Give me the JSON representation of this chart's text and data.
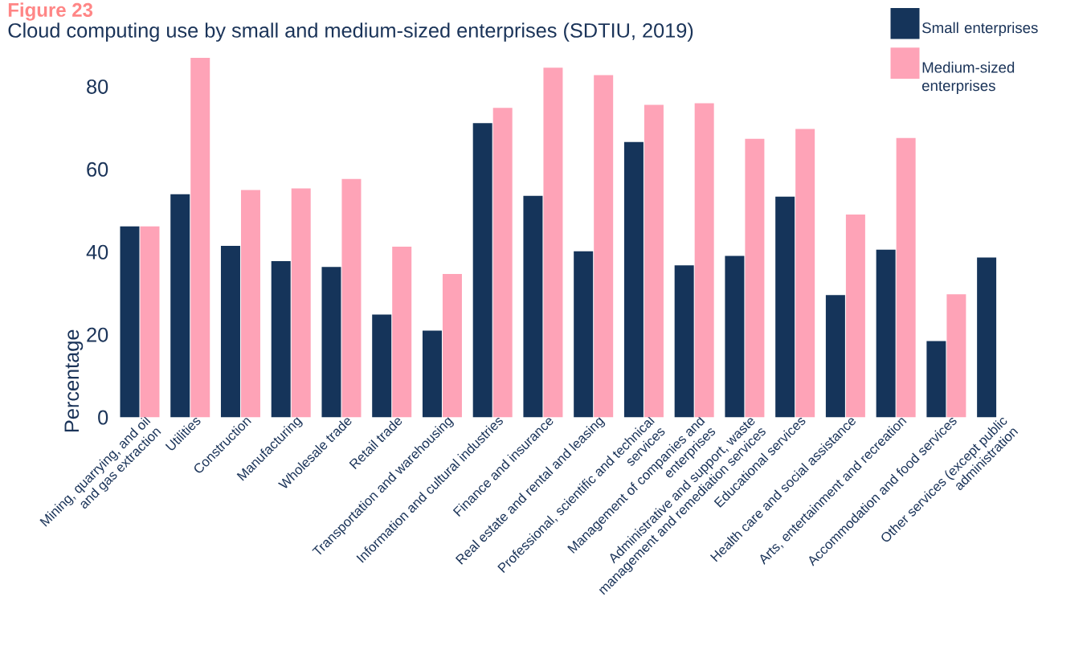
{
  "chart_data": {
    "type": "bar",
    "title": "Figure 23",
    "subtitle": "Cloud computing use by small and medium-sized enterprises (SDTIU, 2019)",
    "ylabel": "Percentage",
    "categories": [
      "Mining, quarrying, and oil and gas extraction",
      "Utilities",
      "Construction",
      "Manufacturing",
      "Wholesale trade",
      "Retail trade",
      "Transportation and warehousing",
      "Information and cultural industries",
      "Finance and insurance",
      "Real estate and rental and leasing",
      "Professional, scientific and technical services",
      "Management of companies and enterprises",
      "Administrative and support, waste management and remediation services",
      "Educational services",
      "Health care and social assistance",
      "Arts, entertainment and recreation",
      "Accommodation and food services",
      "Other services (except public administration"
    ],
    "series": [
      {
        "name": "Small enterprises",
        "color": "#15345a",
        "values": [
          46.2,
          54.0,
          41.5,
          37.8,
          36.4,
          24.9,
          21.0,
          71.2,
          53.6,
          40.2,
          66.6,
          36.8,
          39.1,
          53.4,
          29.6,
          40.6,
          18.5,
          38.7
        ]
      },
      {
        "name": "Medium-sized enterprises",
        "color": "#fea3b7",
        "values": [
          46.2,
          87.0,
          55.0,
          55.4,
          57.7,
          41.3,
          34.7,
          74.9,
          84.6,
          82.8,
          75.6,
          76.0,
          67.4,
          69.8,
          49.1,
          67.6,
          29.8,
          null
        ]
      }
    ],
    "ylim": [
      0,
      88
    ],
    "yticks": [
      0,
      20,
      40,
      60,
      80
    ],
    "grid": false,
    "legend": "top right"
  }
}
